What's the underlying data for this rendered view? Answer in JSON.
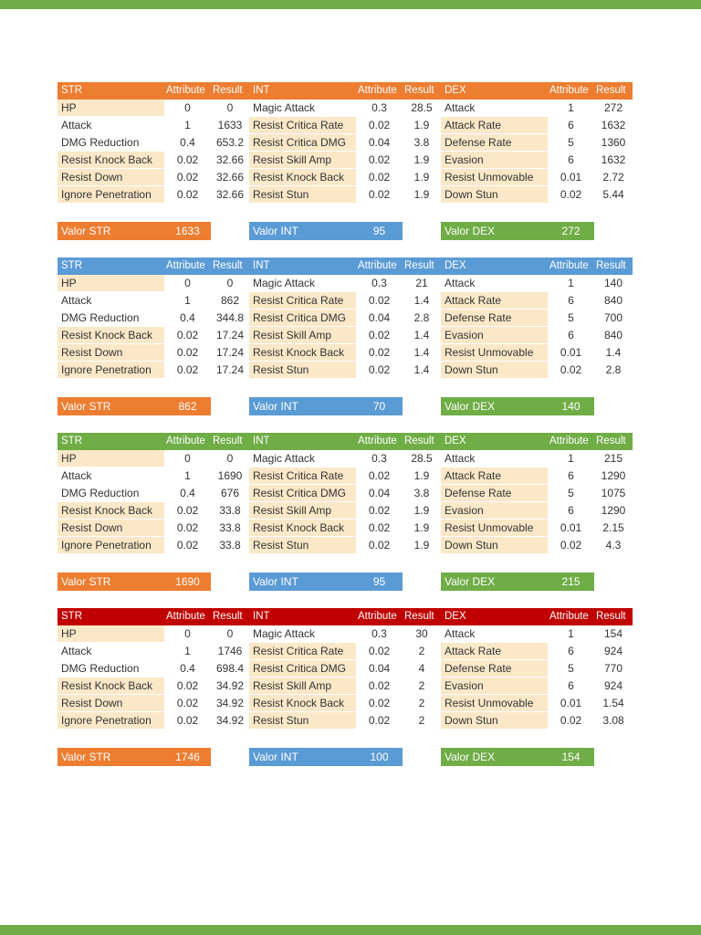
{
  "page": {
    "background": "#ffffff",
    "top_bar_color": "#70AD47",
    "bottom_bar_color": "#70AD47"
  },
  "columns": {
    "attribute": "Attribute",
    "result": "Result"
  },
  "blocks": [
    {
      "header_color": "#ED7D31",
      "tables": [
        {
          "name": "STR",
          "rows": [
            {
              "label": "HP",
              "attribute": "0",
              "result": "0",
              "highlight": true
            },
            {
              "label": "Attack",
              "attribute": "1",
              "result": "1633",
              "highlight": false
            },
            {
              "label": "DMG Reduction",
              "attribute": "0.4",
              "result": "653.2",
              "highlight": false
            },
            {
              "label": "Resist Knock Back",
              "attribute": "0.02",
              "result": "32.66",
              "highlight": true
            },
            {
              "label": "Resist Down",
              "attribute": "0.02",
              "result": "32.66",
              "highlight": true
            },
            {
              "label": "Ignore Penetration",
              "attribute": "0.02",
              "result": "32.66",
              "highlight": true
            }
          ]
        },
        {
          "name": "INT",
          "rows": [
            {
              "label": "Magic Attack",
              "attribute": "0.3",
              "result": "28.5",
              "highlight": false
            },
            {
              "label": "Resist Critica Rate",
              "attribute": "0.02",
              "result": "1.9",
              "highlight": true
            },
            {
              "label": "Resist Critica DMG",
              "attribute": "0.04",
              "result": "3.8",
              "highlight": true
            },
            {
              "label": "Resist Skill Amp",
              "attribute": "0.02",
              "result": "1.9",
              "highlight": true
            },
            {
              "label": "Resist Knock Back",
              "attribute": "0.02",
              "result": "1.9",
              "highlight": true
            },
            {
              "label": "Resist Stun",
              "attribute": "0.02",
              "result": "1.9",
              "highlight": true
            }
          ]
        },
        {
          "name": "DEX",
          "rows": [
            {
              "label": "Attack",
              "attribute": "1",
              "result": "272",
              "highlight": false
            },
            {
              "label": "Attack Rate",
              "attribute": "6",
              "result": "1632",
              "highlight": true
            },
            {
              "label": "Defense Rate",
              "attribute": "5",
              "result": "1360",
              "highlight": true
            },
            {
              "label": "Evasion",
              "attribute": "6",
              "result": "1632",
              "highlight": true
            },
            {
              "label": "Resist Unmovable",
              "attribute": "0.01",
              "result": "2.72",
              "highlight": true
            },
            {
              "label": "Down Stun",
              "attribute": "0.02",
              "result": "5.44",
              "highlight": true
            }
          ]
        }
      ],
      "valors": [
        {
          "label": "Valor STR",
          "value": "1633",
          "color": "#ED7D31"
        },
        {
          "label": "Valor INT",
          "value": "95",
          "color": "#5B9BD5"
        },
        {
          "label": "Valor DEX",
          "value": "272",
          "color": "#70AD47"
        }
      ]
    },
    {
      "header_color": "#5B9BD5",
      "tables": [
        {
          "name": "STR",
          "rows": [
            {
              "label": "HP",
              "attribute": "0",
              "result": "0",
              "highlight": true
            },
            {
              "label": "Attack",
              "attribute": "1",
              "result": "862",
              "highlight": false
            },
            {
              "label": "DMG Reduction",
              "attribute": "0.4",
              "result": "344.8",
              "highlight": false
            },
            {
              "label": "Resist Knock Back",
              "attribute": "0.02",
              "result": "17.24",
              "highlight": true
            },
            {
              "label": "Resist Down",
              "attribute": "0.02",
              "result": "17.24",
              "highlight": true
            },
            {
              "label": "Ignore Penetration",
              "attribute": "0.02",
              "result": "17.24",
              "highlight": true
            }
          ]
        },
        {
          "name": "INT",
          "rows": [
            {
              "label": "Magic Attack",
              "attribute": "0.3",
              "result": "21",
              "highlight": false
            },
            {
              "label": "Resist Critica Rate",
              "attribute": "0.02",
              "result": "1.4",
              "highlight": true
            },
            {
              "label": "Resist Critica DMG",
              "attribute": "0.04",
              "result": "2.8",
              "highlight": true
            },
            {
              "label": "Resist Skill Amp",
              "attribute": "0.02",
              "result": "1.4",
              "highlight": true
            },
            {
              "label": "Resist Knock Back",
              "attribute": "0.02",
              "result": "1.4",
              "highlight": true
            },
            {
              "label": "Resist Stun",
              "attribute": "0.02",
              "result": "1.4",
              "highlight": true
            }
          ]
        },
        {
          "name": "DEX",
          "rows": [
            {
              "label": "Attack",
              "attribute": "1",
              "result": "140",
              "highlight": false
            },
            {
              "label": "Attack Rate",
              "attribute": "6",
              "result": "840",
              "highlight": true
            },
            {
              "label": "Defense Rate",
              "attribute": "5",
              "result": "700",
              "highlight": true
            },
            {
              "label": "Evasion",
              "attribute": "6",
              "result": "840",
              "highlight": true
            },
            {
              "label": "Resist Unmovable",
              "attribute": "0.01",
              "result": "1.4",
              "highlight": true
            },
            {
              "label": "Down Stun",
              "attribute": "0.02",
              "result": "2.8",
              "highlight": true
            }
          ]
        }
      ],
      "valors": [
        {
          "label": "Valor STR",
          "value": "862",
          "color": "#ED7D31"
        },
        {
          "label": "Valor INT",
          "value": "70",
          "color": "#5B9BD5"
        },
        {
          "label": "Valor DEX",
          "value": "140",
          "color": "#70AD47"
        }
      ]
    },
    {
      "header_color": "#70AD47",
      "tables": [
        {
          "name": "STR",
          "rows": [
            {
              "label": "HP",
              "attribute": "0",
              "result": "0",
              "highlight": true
            },
            {
              "label": "Attack",
              "attribute": "1",
              "result": "1690",
              "highlight": false
            },
            {
              "label": "DMG Reduction",
              "attribute": "0.4",
              "result": "676",
              "highlight": false
            },
            {
              "label": "Resist Knock Back",
              "attribute": "0.02",
              "result": "33.8",
              "highlight": true
            },
            {
              "label": "Resist Down",
              "attribute": "0.02",
              "result": "33.8",
              "highlight": true
            },
            {
              "label": "Ignore Penetration",
              "attribute": "0.02",
              "result": "33.8",
              "highlight": true
            }
          ]
        },
        {
          "name": "INT",
          "rows": [
            {
              "label": "Magic Attack",
              "attribute": "0.3",
              "result": "28.5",
              "highlight": false
            },
            {
              "label": "Resist Critica Rate",
              "attribute": "0.02",
              "result": "1.9",
              "highlight": true
            },
            {
              "label": "Resist Critica DMG",
              "attribute": "0.04",
              "result": "3.8",
              "highlight": true
            },
            {
              "label": "Resist Skill Amp",
              "attribute": "0.02",
              "result": "1.9",
              "highlight": true
            },
            {
              "label": "Resist Knock Back",
              "attribute": "0.02",
              "result": "1.9",
              "highlight": true
            },
            {
              "label": "Resist Stun",
              "attribute": "0.02",
              "result": "1.9",
              "highlight": true
            }
          ]
        },
        {
          "name": "DEX",
          "rows": [
            {
              "label": "Attack",
              "attribute": "1",
              "result": "215",
              "highlight": false
            },
            {
              "label": "Attack Rate",
              "attribute": "6",
              "result": "1290",
              "highlight": true
            },
            {
              "label": "Defense Rate",
              "attribute": "5",
              "result": "1075",
              "highlight": true
            },
            {
              "label": "Evasion",
              "attribute": "6",
              "result": "1290",
              "highlight": true
            },
            {
              "label": "Resist Unmovable",
              "attribute": "0.01",
              "result": "2.15",
              "highlight": true
            },
            {
              "label": "Down Stun",
              "attribute": "0.02",
              "result": "4.3",
              "highlight": true
            }
          ]
        }
      ],
      "valors": [
        {
          "label": "Valor STR",
          "value": "1690",
          "color": "#ED7D31"
        },
        {
          "label": "Valor INT",
          "value": "95",
          "color": "#5B9BD5"
        },
        {
          "label": "Valor DEX",
          "value": "215",
          "color": "#70AD47"
        }
      ]
    },
    {
      "header_color": "#C00000",
      "tables": [
        {
          "name": "STR",
          "rows": [
            {
              "label": "HP",
              "attribute": "0",
              "result": "0",
              "highlight": true
            },
            {
              "label": "Attack",
              "attribute": "1",
              "result": "1746",
              "highlight": false
            },
            {
              "label": "DMG Reduction",
              "attribute": "0.4",
              "result": "698.4",
              "highlight": false
            },
            {
              "label": "Resist Knock Back",
              "attribute": "0.02",
              "result": "34.92",
              "highlight": true
            },
            {
              "label": "Resist Down",
              "attribute": "0.02",
              "result": "34.92",
              "highlight": true
            },
            {
              "label": "Ignore Penetration",
              "attribute": "0.02",
              "result": "34.92",
              "highlight": true
            }
          ]
        },
        {
          "name": "INT",
          "rows": [
            {
              "label": "Magic Attack",
              "attribute": "0.3",
              "result": "30",
              "highlight": false
            },
            {
              "label": "Resist Critica Rate",
              "attribute": "0.02",
              "result": "2",
              "highlight": true
            },
            {
              "label": "Resist Critica DMG",
              "attribute": "0.04",
              "result": "4",
              "highlight": true
            },
            {
              "label": "Resist Skill Amp",
              "attribute": "0.02",
              "result": "2",
              "highlight": true
            },
            {
              "label": "Resist Knock Back",
              "attribute": "0.02",
              "result": "2",
              "highlight": true
            },
            {
              "label": "Resist Stun",
              "attribute": "0.02",
              "result": "2",
              "highlight": true
            }
          ]
        },
        {
          "name": "DEX",
          "rows": [
            {
              "label": "Attack",
              "attribute": "1",
              "result": "154",
              "highlight": false
            },
            {
              "label": "Attack Rate",
              "attribute": "6",
              "result": "924",
              "highlight": true
            },
            {
              "label": "Defense Rate",
              "attribute": "5",
              "result": "770",
              "highlight": true
            },
            {
              "label": "Evasion",
              "attribute": "6",
              "result": "924",
              "highlight": true
            },
            {
              "label": "Resist Unmovable",
              "attribute": "0.01",
              "result": "1.54",
              "highlight": true
            },
            {
              "label": "Down Stun",
              "attribute": "0.02",
              "result": "3.08",
              "highlight": true
            }
          ]
        }
      ],
      "valors": [
        {
          "label": "Valor STR",
          "value": "1746",
          "color": "#ED7D31"
        },
        {
          "label": "Valor INT",
          "value": "100",
          "color": "#5B9BD5"
        },
        {
          "label": "Valor DEX",
          "value": "154",
          "color": "#70AD47"
        }
      ]
    }
  ]
}
